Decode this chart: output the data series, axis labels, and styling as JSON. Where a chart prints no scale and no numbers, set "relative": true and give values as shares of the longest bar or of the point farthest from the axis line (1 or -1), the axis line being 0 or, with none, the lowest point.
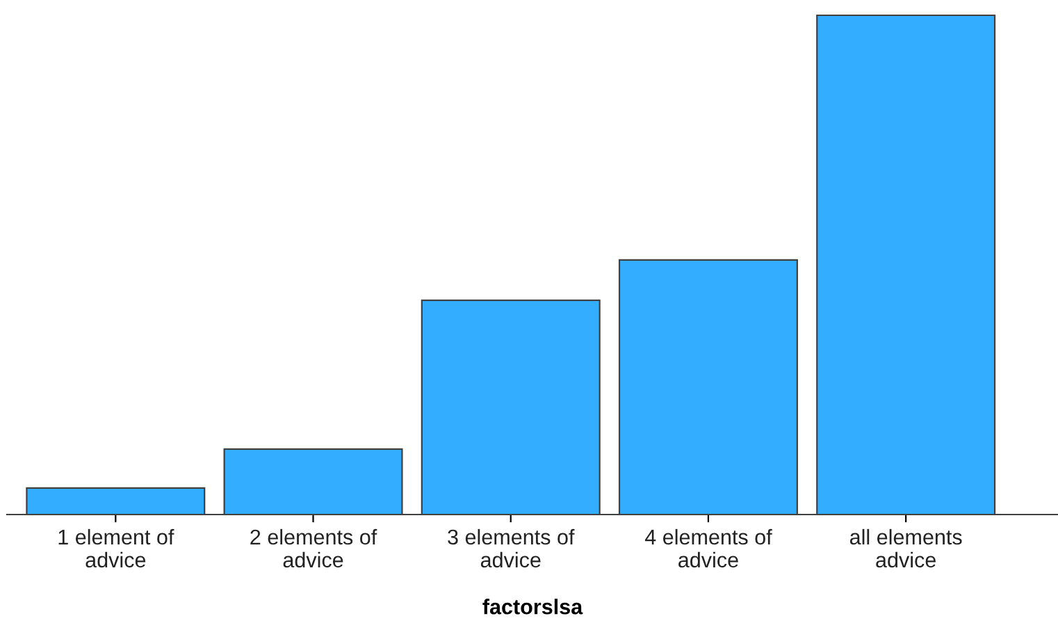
{
  "chart_data": {
    "type": "bar",
    "relative": true,
    "xlabel": "factorslsa",
    "categories": [
      "1 element of\nadvice",
      "2 elements of\nadvice",
      "3 elements of\nadvice",
      "4 elements of\nadvice",
      "all elements\nadvice"
    ],
    "values": [
      0.053,
      0.131,
      0.429,
      0.51,
      1
    ],
    "color": "#33adff",
    "grid": false,
    "legend": false
  }
}
